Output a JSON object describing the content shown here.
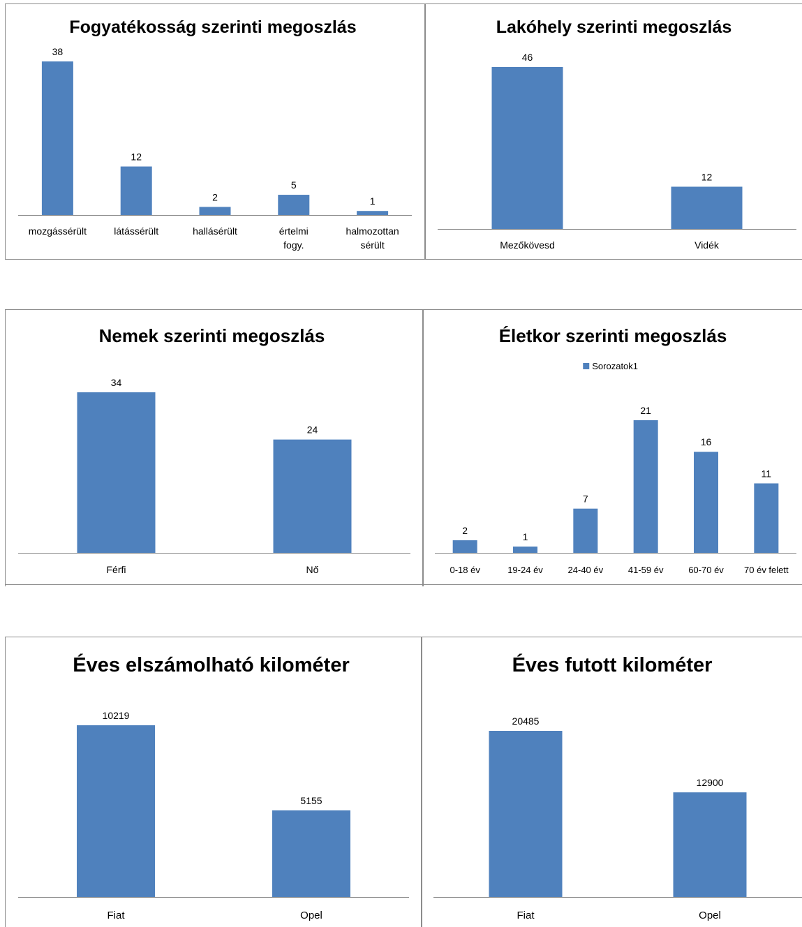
{
  "chart_data": [
    {
      "type": "bar",
      "title": "Fogyatékosság szerinti megoszlás",
      "categories": [
        "mozgássérült",
        "látássérült",
        "hallásérült",
        "értelmi fogy.",
        "halmozottan sérült"
      ],
      "values": [
        38,
        12,
        2,
        5,
        1
      ],
      "ylim": [
        0,
        38
      ],
      "grid": false,
      "legend": null,
      "bar_color": "#4f81bd"
    },
    {
      "type": "bar",
      "title": "Lakóhely szerinti megoszlás",
      "categories": [
        "Mezőkövesd",
        "Vidék"
      ],
      "values": [
        46,
        12
      ],
      "ylim": [
        0,
        46
      ],
      "grid": false,
      "legend": null,
      "bar_color": "#4f81bd"
    },
    {
      "type": "bar",
      "title": "Nemek szerinti megoszlás",
      "categories": [
        "Férfi",
        "Nő"
      ],
      "values": [
        34,
        24
      ],
      "ylim": [
        0,
        34
      ],
      "grid": false,
      "legend": null,
      "bar_color": "#4f81bd"
    },
    {
      "type": "bar",
      "title": "Életkor szerinti megoszlás",
      "categories": [
        "0-18 év",
        "19-24 év",
        "24-40 év",
        "41-59 év",
        "60-70 év",
        "70 év felett"
      ],
      "series": [
        {
          "name": "Sorozatok1",
          "values": [
            2,
            1,
            7,
            21,
            16,
            11
          ]
        }
      ],
      "ylim": [
        0,
        21
      ],
      "grid": false,
      "legend": "top",
      "bar_color": "#4f81bd"
    },
    {
      "type": "bar",
      "title": "Éves elszámolható kilométer",
      "categories": [
        "Fiat",
        "Opel"
      ],
      "values": [
        10219,
        5155
      ],
      "ylim": [
        0,
        10219
      ],
      "grid": false,
      "legend": null,
      "bar_color": "#4f81bd"
    },
    {
      "type": "bar",
      "title": "Éves futott kilométer",
      "categories": [
        "Fiat",
        "Opel"
      ],
      "values": [
        20485,
        12900
      ],
      "ylim": [
        0,
        20485
      ],
      "grid": false,
      "legend": null,
      "bar_color": "#4f81bd"
    }
  ]
}
